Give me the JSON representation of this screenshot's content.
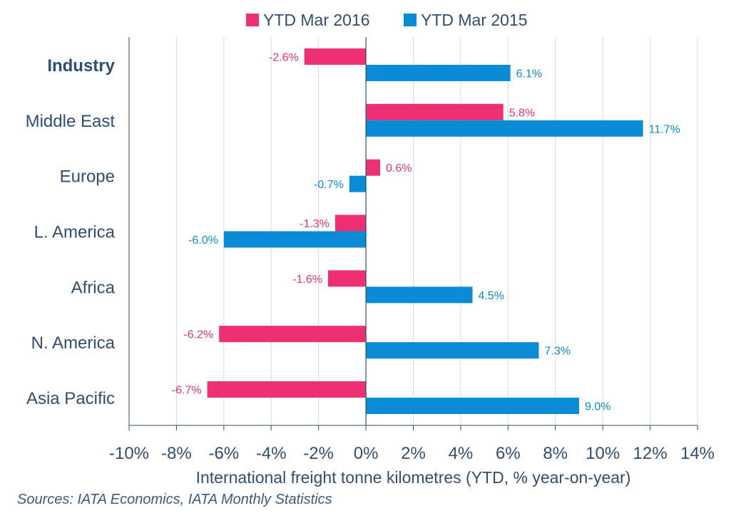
{
  "colors": {
    "series_2016": "#ef2f74",
    "series_2015": "#0a8bd6",
    "axis_text": "#2e4e76",
    "gridline": "#d9d9d9",
    "axis_line": "#2e4e76"
  },
  "source_note": "Sources: IATA Economics, IATA Monthly Statistics",
  "chart_data": {
    "type": "bar",
    "orientation": "horizontal",
    "title": "",
    "xlabel": "International freight tonne kilometres (YTD, % year-on-year)",
    "ylabel": "",
    "xlim": [
      -10,
      14
    ],
    "x_ticks": [
      -10,
      -8,
      -6,
      -4,
      -2,
      0,
      2,
      4,
      6,
      8,
      10,
      12,
      14
    ],
    "x_tick_labels": [
      "-10%",
      "-8%",
      "-6%",
      "-4%",
      "-2%",
      "0%",
      "2%",
      "4%",
      "6%",
      "8%",
      "10%",
      "12%",
      "14%"
    ],
    "grid": "vertical",
    "legend_position": "top",
    "categories": [
      "Industry",
      "Middle East",
      "Europe",
      "L. America",
      "Africa",
      "N. America",
      "Asia Pacific"
    ],
    "bold_categories": [
      "Industry"
    ],
    "series": [
      {
        "name": "YTD Mar 2016",
        "color_key": "series_2016",
        "values": [
          -2.6,
          5.8,
          0.6,
          -1.3,
          -1.6,
          -6.2,
          -6.7
        ],
        "labels": [
          "-2.6%",
          "5.8%",
          "0.6%",
          "-1.3%",
          "-1.6%",
          "-6.2%",
          "-6.7%"
        ]
      },
      {
        "name": "YTD Mar 2015",
        "color_key": "series_2015",
        "values": [
          6.1,
          11.7,
          -0.7,
          -6.0,
          4.5,
          7.3,
          9.0
        ],
        "labels": [
          "6.1%",
          "11.7%",
          "-0.7%",
          "-6.0%",
          "4.5%",
          "7.3%",
          "9.0%"
        ]
      }
    ]
  }
}
